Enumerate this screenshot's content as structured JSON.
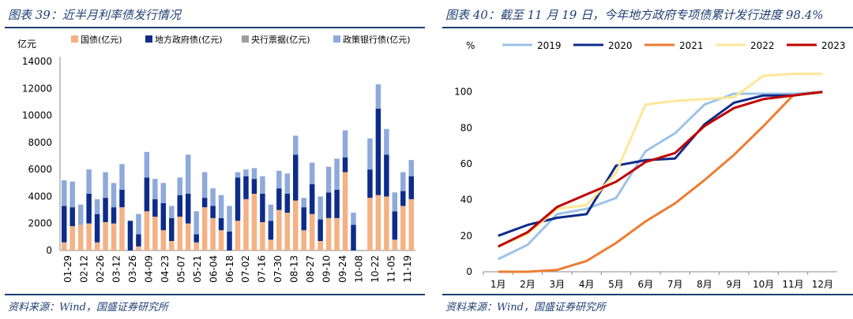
{
  "left": {
    "title": "图表 39：近半月利率债发行情况",
    "source": "资料来源：Wind，国盛证券研究所"
  },
  "right": {
    "title": "图表 40：截至 11 月 19 日，今年地方政府专项债累计发行进度 98.4%",
    "source": "资料来源：Wind，国盛证券研究所"
  },
  "colors": {
    "title": "#1f3f73",
    "gov": "#f4b183",
    "local": "#0d2c8a",
    "cb": "#9e9e9e",
    "policy": "#8ea9db"
  },
  "chart_data": [
    {
      "type": "bar",
      "stacked": true,
      "ylabel": "亿元",
      "ylim": [
        0,
        14000
      ],
      "yticks": [
        0,
        2000,
        4000,
        6000,
        8000,
        10000,
        12000,
        14000
      ],
      "legend_position": "top",
      "category_labels": [
        "01-29",
        "02-12",
        "02-26",
        "03-12",
        "03-26",
        "04-09",
        "04-23",
        "05-07",
        "05-21",
        "06-04",
        "06-18",
        "07-02",
        "07-16",
        "07-30",
        "08-13",
        "08-27",
        "09-10",
        "09-24",
        "10-08",
        "10-22",
        "11-05",
        "11-19"
      ],
      "series": [
        {
          "name": "国债(亿元)",
          "color": "#f4b183",
          "values": [
            600,
            1800,
            1900,
            2000,
            600,
            2100,
            2000,
            3200,
            0,
            300,
            2900,
            2500,
            1500,
            700,
            2500,
            2000,
            600,
            3200,
            2400,
            1500,
            0,
            2200,
            3800,
            4200,
            2100,
            800,
            3000,
            2800,
            3700,
            1500,
            2700,
            700,
            2400,
            2400,
            5800,
            0,
            0,
            3900,
            4100,
            4000,
            800,
            3300,
            3800
          ]
        },
        {
          "name": "地方政府债(亿元)",
          "color": "#0d2c8a",
          "values": [
            2700,
            1400,
            0,
            2200,
            2100,
            1800,
            1200,
            1300,
            2200,
            900,
            2500,
            1300,
            2000,
            1700,
            1600,
            2200,
            600,
            700,
            900,
            900,
            1400,
            3200,
            1700,
            1100,
            2100,
            1400,
            1600,
            1400,
            3400,
            1700,
            2200,
            1600,
            1900,
            2100,
            1100,
            1900,
            0,
            2100,
            6400,
            3100,
            2100,
            1100,
            1700
          ]
        },
        {
          "name": "央行票据(亿元)",
          "color": "#9e9e9e",
          "values": [
            0,
            0,
            0,
            0,
            0,
            0,
            0,
            0,
            0,
            0,
            0,
            0,
            0,
            0,
            0,
            0,
            0,
            0,
            0,
            0,
            0,
            0,
            0,
            0,
            0,
            0,
            0,
            0,
            0,
            0,
            0,
            0,
            0,
            0,
            0,
            0,
            0,
            0,
            0,
            0,
            0,
            0,
            0
          ]
        },
        {
          "name": "政策银行债(亿元)",
          "color": "#8ea9db",
          "values": [
            1900,
            1900,
            1500,
            1800,
            1100,
            1900,
            1800,
            1900,
            0,
            1500,
            1900,
            1500,
            1500,
            900,
            1300,
            2900,
            1700,
            1900,
            1300,
            1700,
            1900,
            400,
            500,
            800,
            1300,
            1200,
            1300,
            1500,
            1400,
            700,
            1600,
            1700,
            1900,
            2300,
            2000,
            900,
            0,
            2300,
            1800,
            1900,
            1400,
            1400,
            1200
          ]
        }
      ]
    },
    {
      "type": "line",
      "ylabel": "%",
      "ylim": [
        0,
        120
      ],
      "yticks": [
        0,
        20,
        40,
        60,
        80,
        100
      ],
      "legend_position": "top",
      "categories": [
        "1月",
        "2月",
        "3月",
        "4月",
        "5月",
        "6月",
        "7月",
        "8月",
        "9月",
        "10月",
        "11月",
        "12月"
      ],
      "series": [
        {
          "name": "2019",
          "color": "#9dc3e6",
          "values": [
            7,
            15,
            32,
            35,
            41,
            67,
            77,
            93,
            99,
            99,
            99,
            100
          ]
        },
        {
          "name": "2020",
          "color": "#0d2c8a",
          "values": [
            20,
            26,
            30,
            32,
            59,
            62,
            63,
            82,
            94,
            98,
            98,
            100
          ]
        },
        {
          "name": "2021",
          "color": "#ed7d31",
          "values": [
            0,
            0,
            1,
            6,
            16,
            28,
            38,
            51,
            65,
            81,
            98,
            100
          ]
        },
        {
          "name": "2022",
          "color": "#ffe699",
          "values": [
            14,
            21,
            35,
            37,
            55,
            93,
            95,
            96,
            97,
            109,
            110,
            110
          ]
        },
        {
          "name": "2023",
          "color": "#c00000",
          "values": [
            14,
            22,
            36,
            43,
            50,
            61,
            66,
            81,
            91,
            96,
            98,
            100
          ]
        }
      ]
    }
  ]
}
